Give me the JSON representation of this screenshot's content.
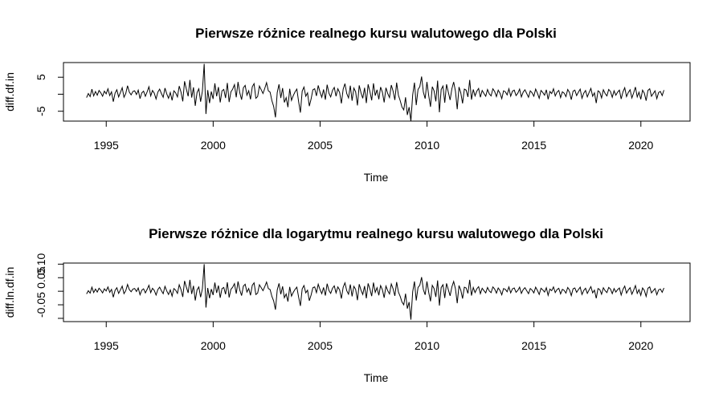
{
  "chart_data": [
    {
      "type": "line",
      "title": "Pierwsze różnice realnego kursu walutowego dla Polski",
      "xlabel": "Time",
      "ylabel": "diff.df.in",
      "xlim": [
        1993.0,
        2022.3
      ],
      "ylim": [
        -7.9,
        9.3
      ],
      "xticks": [
        1995,
        2000,
        2005,
        2010,
        2015,
        2020
      ],
      "yticks": [
        -5,
        0,
        5
      ],
      "ytick_labels": [
        "-5",
        "",
        "5"
      ],
      "x_start": 1994.08,
      "x_step": 0.08333,
      "series": [
        {
          "values": [
            -1.0,
            0.2,
            -0.7,
            1.5,
            -0.5,
            0.8,
            -0.3,
            1.1,
            0.4,
            -0.6,
            0.9,
            0.1,
            1.6,
            -0.4,
            0.7,
            -2.2,
            0.3,
            1.3,
            -0.8,
            0.5,
            1.9,
            -0.9,
            0.2,
            2.5,
            0.6,
            -0.2,
            0.8,
            1.0,
            -0.1,
            1.2,
            -1.3,
            0.4,
            0.9,
            -0.6,
            0.7,
            2.2,
            -0.5,
            1.1,
            0.3,
            -1.4,
            0.6,
            1.5,
            0.2,
            -0.9,
            1.8,
            0.1,
            -1.2,
            0.5,
            -1.8,
            1.0,
            0.4,
            -0.8,
            2.4,
            0.6,
            -2.1,
            3.8,
            1.5,
            -0.6,
            4.2,
            -1.0,
            2.0,
            -3.4,
            0.5,
            1.6,
            -2.2,
            0.9,
            8.9,
            -5.8,
            1.2,
            -2.6,
            0.8,
            -1.4,
            3.2,
            -0.6,
            2.1,
            -2.4,
            1.0,
            1.4,
            -1.1,
            3.3,
            -2.3,
            0.7,
            1.5,
            2.8,
            -0.9,
            3.6,
            0.4,
            -1.6,
            1.9,
            2.6,
            -0.3,
            1.0,
            -1.5,
            2.2,
            3.1,
            -1.2,
            -0.7,
            2.4,
            1.3,
            0.2,
            1.7,
            3.4,
            1.0,
            0.6,
            -1.9,
            -3.6,
            -6.8,
            0.5,
            2.9,
            -1.1,
            1.8,
            -2.4,
            -1.0,
            -3.8,
            1.6,
            -1.8,
            -0.4,
            0.7,
            1.5,
            -2.2,
            -5.4,
            0.9,
            2.1,
            -0.6,
            0.4,
            -3.5,
            -1.4,
            1.3,
            1.6,
            -0.5,
            2.6,
            0.6,
            -0.9,
            1.4,
            -1.6,
            2.8,
            0.3,
            -0.8,
            1.1,
            2.0,
            -0.6,
            1.6,
            0.5,
            -2.7,
            1.5,
            3.1,
            0.2,
            -1.1,
            2.5,
            -1.9,
            1.8,
            0.7,
            -3.3,
            2.6,
            0.4,
            -1.2,
            1.9,
            -2.6,
            2.9,
            0.8,
            -1.8,
            3.2,
            -0.4,
            1.3,
            -1.5,
            2.1,
            0.6,
            -2.4,
            1.9,
            0.2,
            -1.0,
            2.7,
            0.9,
            -1.7,
            3.4,
            -0.3,
            -1.9,
            -3.8,
            -4.6,
            -0.9,
            -6.1,
            -3.8,
            -7.9,
            -0.2,
            3.4,
            -3.2,
            1.4,
            2.2,
            5.2,
            0.6,
            -1.3,
            3.6,
            -0.4,
            -3.7,
            2.2,
            1.0,
            -2.1,
            4.0,
            -5.3,
            1.4,
            2.4,
            -2.5,
            2.9,
            0.6,
            -1.7,
            1.6,
            3.6,
            0.9,
            -4.4,
            2.1,
            0.4,
            -2.7,
            1.5,
            1.2,
            -0.8,
            4.2,
            -1.6,
            1.4,
            -0.5,
            0.9,
            1.7,
            -0.9,
            1.1,
            0.2,
            -0.6,
            1.4,
            0.1,
            -0.5,
            1.6,
            0.8,
            -0.7,
            1.2,
            0.3,
            -1.3,
            1.0,
            0.7,
            -0.2,
            1.6,
            -0.6,
            0.9,
            1.2,
            -0.4,
            0.3,
            1.5,
            -0.8,
            0.6,
            1.3,
            0.2,
            -0.9,
            1.0,
            0.4,
            -0.6,
            1.5,
            0.3,
            -1.2,
            1.1,
            0.5,
            -0.3,
            1.3,
            -1.5,
            0.8,
            0.2,
            1.6,
            -0.5,
            0.6,
            1.1,
            -1.0,
            0.7,
            0.3,
            -0.7,
            1.4,
            0.5,
            -1.6,
            0.9,
            1.2,
            -0.4,
            0.6,
            1.5,
            -1.2,
            0.3,
            1.1,
            -0.8,
            0.5,
            1.7,
            -0.6,
            0.4,
            -2.6,
            1.0,
            0.6,
            -1.1,
            1.3,
            0.2,
            -0.5,
            1.4,
            0.8,
            -0.9,
            1.0,
            -0.3,
            0.6,
            1.2,
            -1.4,
            0.7,
            1.9,
            -0.7,
            0.5,
            1.3,
            -1.1,
            0.4,
            2.1,
            -0.8,
            0.6,
            -1.5,
            1.2,
            0.3,
            -1.9,
            1.1,
            1.6,
            -0.6,
            0.2,
            1.0,
            -1.3,
            0.5,
            0.8,
            -0.4,
            1.2
          ]
        }
      ]
    },
    {
      "type": "line",
      "title": "Pierwsze różnice dla logarytmu realnego kursu walutowego dla Polski",
      "xlabel": "Time",
      "ylabel": "diff.ln.df.in",
      "xlim": [
        1993.0,
        2022.3
      ],
      "ylim": [
        -0.112,
        0.104
      ],
      "xticks": [
        1995,
        2000,
        2005,
        2010,
        2015,
        2020
      ],
      "yticks": [
        -0.1,
        -0.05,
        0.0,
        0.05,
        0.1
      ],
      "ytick_labels": [
        "",
        "-0.05",
        "",
        "0.05",
        "0.10"
      ],
      "x_start": 1994.08,
      "x_step": 0.08333,
      "series": [
        {
          "values": [
            -0.01,
            0.002,
            -0.007,
            0.015,
            -0.005,
            0.008,
            -0.003,
            0.011,
            0.004,
            -0.006,
            0.009,
            0.001,
            0.016,
            -0.004,
            0.007,
            -0.022,
            0.003,
            0.013,
            -0.008,
            0.005,
            0.019,
            -0.009,
            0.002,
            0.025,
            0.006,
            -0.002,
            0.008,
            0.01,
            -0.001,
            0.012,
            -0.013,
            0.004,
            0.009,
            -0.006,
            0.007,
            0.022,
            -0.005,
            0.011,
            0.003,
            -0.014,
            0.006,
            0.015,
            0.002,
            -0.009,
            0.018,
            0.001,
            -0.012,
            0.005,
            -0.018,
            0.01,
            0.004,
            -0.008,
            0.024,
            0.006,
            -0.021,
            0.038,
            0.015,
            -0.006,
            0.042,
            -0.01,
            0.02,
            -0.034,
            0.005,
            0.016,
            -0.022,
            0.009,
            0.1,
            -0.06,
            0.012,
            -0.026,
            0.008,
            -0.014,
            0.032,
            -0.006,
            0.021,
            -0.024,
            0.01,
            0.014,
            -0.011,
            0.033,
            -0.023,
            0.007,
            0.015,
            0.028,
            -0.009,
            0.036,
            0.004,
            -0.016,
            0.019,
            0.026,
            -0.003,
            0.01,
            -0.015,
            0.022,
            0.031,
            -0.012,
            -0.007,
            0.024,
            0.013,
            0.002,
            0.017,
            0.034,
            0.01,
            0.006,
            -0.019,
            -0.036,
            -0.068,
            0.005,
            0.029,
            -0.011,
            0.018,
            -0.024,
            -0.01,
            -0.038,
            0.016,
            -0.018,
            -0.004,
            0.007,
            0.015,
            -0.022,
            -0.054,
            0.009,
            0.021,
            -0.006,
            0.004,
            -0.035,
            -0.014,
            0.013,
            0.016,
            -0.005,
            0.026,
            0.006,
            -0.009,
            0.014,
            -0.016,
            0.028,
            0.003,
            -0.008,
            0.011,
            0.02,
            -0.006,
            0.016,
            0.005,
            -0.027,
            0.015,
            0.031,
            0.002,
            -0.011,
            0.025,
            -0.019,
            0.018,
            0.007,
            -0.033,
            0.026,
            0.004,
            -0.012,
            0.019,
            -0.026,
            0.029,
            0.008,
            -0.018,
            0.032,
            -0.004,
            0.013,
            -0.015,
            0.021,
            0.006,
            -0.024,
            0.019,
            0.002,
            -0.01,
            0.027,
            0.009,
            -0.017,
            0.034,
            -0.003,
            -0.019,
            -0.04,
            -0.05,
            -0.009,
            -0.064,
            -0.04,
            -0.105,
            -0.002,
            0.036,
            -0.034,
            0.014,
            0.022,
            0.052,
            0.006,
            -0.013,
            0.036,
            -0.004,
            -0.037,
            0.022,
            0.01,
            -0.021,
            0.04,
            -0.053,
            0.014,
            0.024,
            -0.025,
            0.029,
            0.006,
            -0.017,
            0.016,
            0.036,
            0.009,
            -0.044,
            0.021,
            0.004,
            -0.027,
            0.015,
            0.012,
            -0.008,
            0.042,
            -0.016,
            0.014,
            -0.005,
            0.009,
            0.017,
            -0.009,
            0.011,
            0.002,
            -0.006,
            0.014,
            0.001,
            -0.005,
            0.016,
            0.008,
            -0.007,
            0.012,
            0.003,
            -0.013,
            0.01,
            0.007,
            -0.002,
            0.016,
            -0.006,
            0.009,
            0.012,
            -0.004,
            0.003,
            0.015,
            -0.008,
            0.006,
            0.013,
            0.002,
            -0.009,
            0.01,
            0.004,
            -0.006,
            0.015,
            0.003,
            -0.012,
            0.011,
            0.005,
            -0.003,
            0.013,
            -0.015,
            0.008,
            0.002,
            0.016,
            -0.005,
            0.006,
            0.011,
            -0.01,
            0.007,
            0.003,
            -0.007,
            0.014,
            0.005,
            -0.016,
            0.009,
            0.012,
            -0.004,
            0.006,
            0.015,
            -0.012,
            0.003,
            0.011,
            -0.008,
            0.005,
            0.017,
            -0.006,
            0.004,
            -0.026,
            0.01,
            0.006,
            -0.011,
            0.013,
            0.002,
            -0.005,
            0.014,
            0.008,
            -0.009,
            0.01,
            -0.003,
            0.006,
            0.012,
            -0.014,
            0.007,
            0.019,
            -0.007,
            0.005,
            0.013,
            -0.011,
            0.004,
            0.021,
            -0.008,
            0.006,
            -0.015,
            0.012,
            0.003,
            -0.019,
            0.011,
            0.016,
            -0.006,
            0.002,
            0.01,
            -0.013,
            0.005,
            0.008,
            -0.004,
            0.012
          ]
        }
      ]
    }
  ]
}
